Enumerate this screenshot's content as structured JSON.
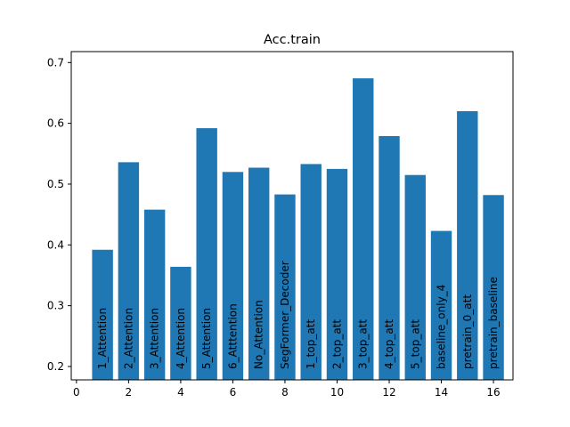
{
  "chart_data": {
    "type": "bar",
    "title": "Acc.train",
    "xlabel": "",
    "ylabel": "",
    "x": [
      1,
      2,
      3,
      4,
      5,
      6,
      7,
      8,
      9,
      10,
      11,
      12,
      13,
      14,
      15,
      16
    ],
    "labels": [
      "1_Attention",
      "2_Attention",
      "3_Attention",
      "4_Attention",
      "5_Attention",
      "6_Atttention",
      "No_Attention",
      "SegFormer_Decoder",
      "1_top_att",
      "2_top_att",
      "3_top_att",
      "4_top_att",
      "5_top_att",
      "baseline_only_4",
      "pretrain_0_att",
      "pretrain_baseline"
    ],
    "values": [
      0.392,
      0.536,
      0.458,
      0.364,
      0.592,
      0.52,
      0.527,
      0.483,
      0.533,
      0.525,
      0.674,
      0.579,
      0.515,
      0.423,
      0.62,
      0.482
    ],
    "xlim": [
      -0.2,
      16.75
    ],
    "ylim": [
      0.178,
      0.718
    ],
    "xticks": [
      0,
      2,
      4,
      6,
      8,
      10,
      12,
      14,
      16
    ],
    "yticks": [
      0.2,
      0.3,
      0.4,
      0.5,
      0.6,
      0.7
    ],
    "ytick_labels": [
      "0.2",
      "0.3",
      "0.4",
      "0.5",
      "0.6",
      "0.7"
    ],
    "bar_color": "#1f77b4",
    "grid": false,
    "legend": "none"
  }
}
